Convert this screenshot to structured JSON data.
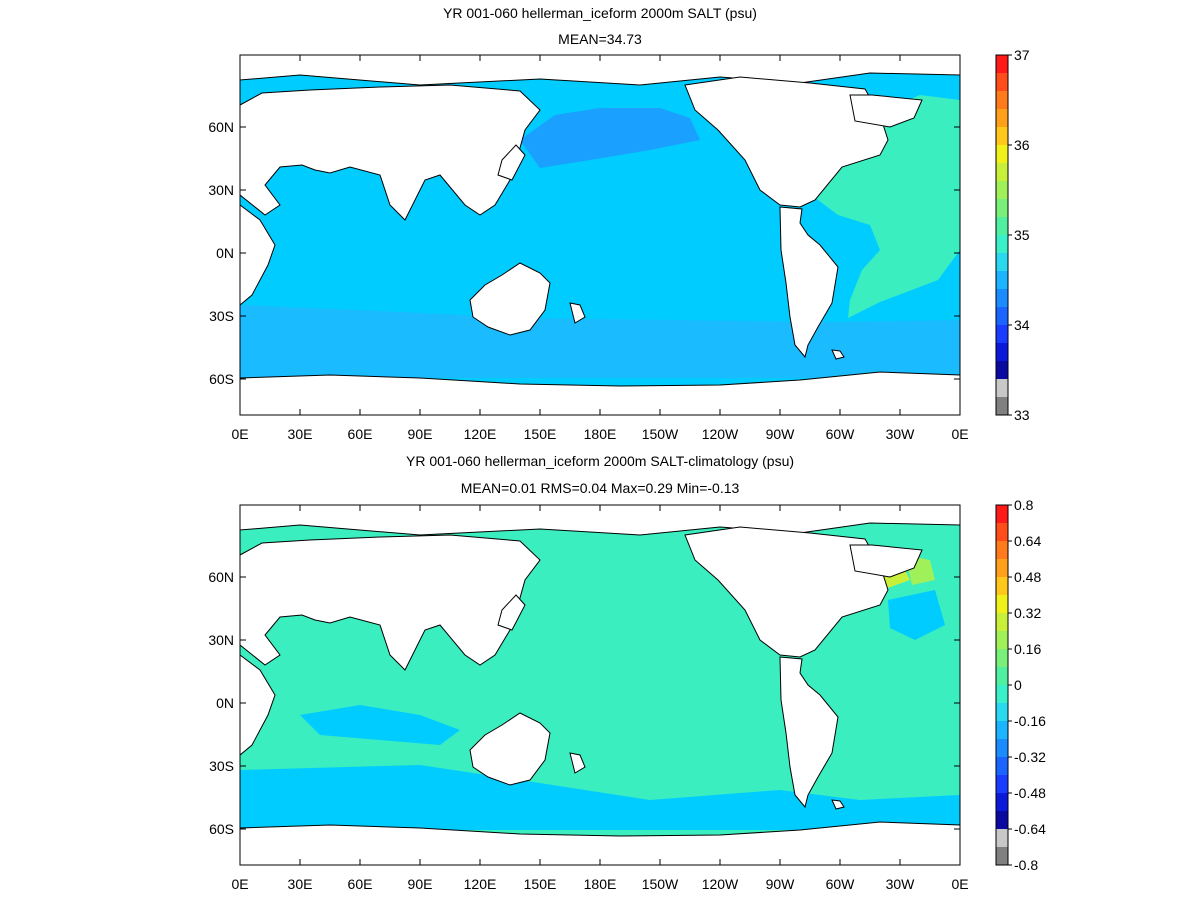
{
  "panels": [
    {
      "title": "YR 001-060 hellerman_iceform 2000m SALT (psu)",
      "subtitle": "MEAN=34.73",
      "colorbar": {
        "labels": [
          "37",
          "36",
          "35",
          "34",
          "33"
        ],
        "colors": [
          "#ff1a1a",
          "#ff4d1a",
          "#ff7a1a",
          "#ffa01a",
          "#ffc81a",
          "#f0f01a",
          "#c8f03a",
          "#a0f05a",
          "#7af07a",
          "#50f0a0",
          "#3af0c8",
          "#2ad8f0",
          "#1ab4ff",
          "#1a8cff",
          "#1a64ff",
          "#1a3cff",
          "#0a1ad8",
          "#0a0aa0",
          "#c8c8c8",
          "#808080"
        ]
      },
      "field": {
        "ocean": "#00ccff",
        "north_pacific": "#1aa0ff",
        "atlantic": "#3aeec0",
        "marginal": "#1abcff"
      }
    },
    {
      "title": "YR 001-060 hellerman_iceform 2000m SALT-climatology (psu)",
      "subtitle": "MEAN=0.01   RMS=0.04   Max=0.29   Min=-0.13",
      "colorbar": {
        "labels": [
          "0.8",
          "0.64",
          "0.48",
          "0.32",
          "0.16",
          "0",
          "-0.16",
          "-0.32",
          "-0.48",
          "-0.64",
          "-0.8"
        ],
        "colors": [
          "#ff1a1a",
          "#ff4d1a",
          "#ff7a1a",
          "#ffa01a",
          "#ffc81a",
          "#f0f01a",
          "#c8f03a",
          "#a0f05a",
          "#7af07a",
          "#50f0a0",
          "#3af0c8",
          "#2ad8f0",
          "#1ab4ff",
          "#1a8cff",
          "#1a64ff",
          "#1a3cff",
          "#0a1ad8",
          "#0a0aa0",
          "#c8c8c8",
          "#808080"
        ]
      },
      "field": {
        "ocean": "#3aeec0",
        "low": "#00ccff",
        "high": "#c8f03a"
      }
    }
  ],
  "map_axes": {
    "x_ticks": [
      "0E",
      "30E",
      "60E",
      "90E",
      "120E",
      "150E",
      "180E",
      "150W",
      "120W",
      "90W",
      "60W",
      "30W",
      "0E"
    ],
    "y_ticks": [
      "60N",
      "30N",
      "0N",
      "30S",
      "60S"
    ]
  }
}
